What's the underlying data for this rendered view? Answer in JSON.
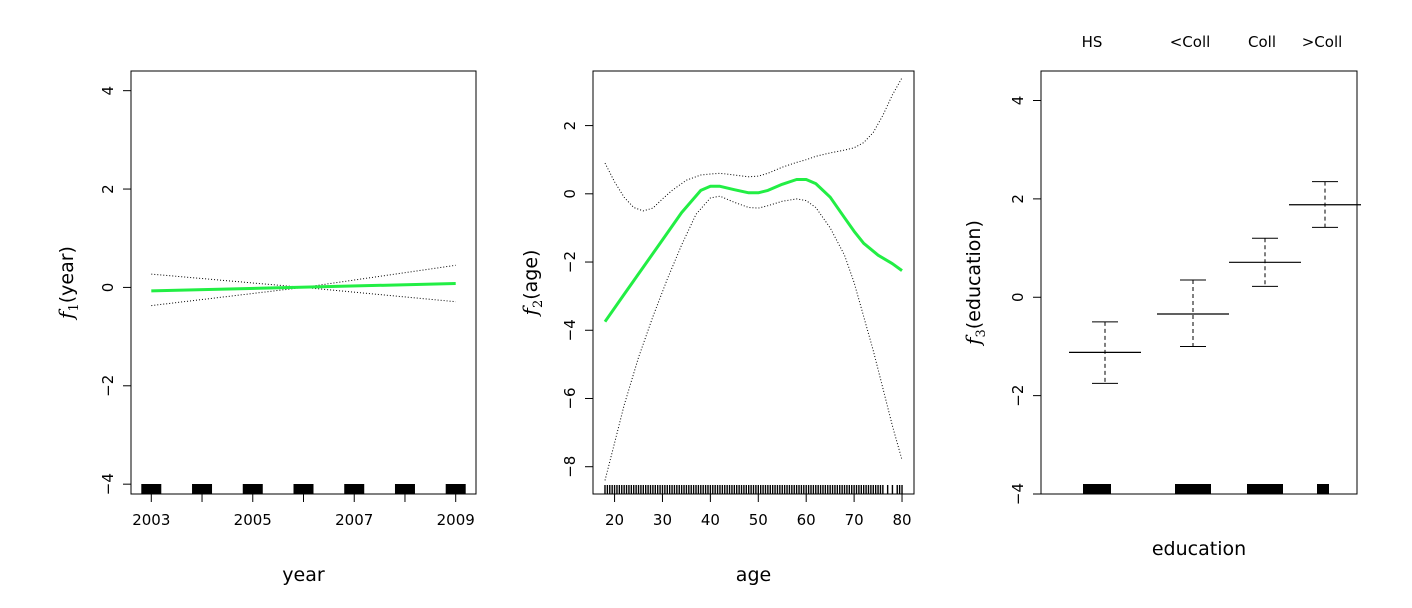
{
  "chart_data": [
    {
      "type": "line",
      "panel": "year",
      "xlabel": "year",
      "ylabel_fn": "f",
      "ylabel_sub": "1",
      "ylabel_var": "year",
      "xlim": [
        2002.6,
        2009.4
      ],
      "ylim": [
        -4.2,
        4.4
      ],
      "x_ticks": [
        2003,
        2005,
        2007,
        2009
      ],
      "x_tick_labels": [
        "2003",
        "2005",
        "2007",
        "2009"
      ],
      "y_ticks": [
        -4,
        -2,
        0,
        2,
        4
      ],
      "y_tick_labels": [
        "−4",
        "−2",
        "0",
        "2",
        "4"
      ],
      "fit_color": "#22ee44",
      "series": [
        {
          "name": "fit",
          "x": [
            2003,
            2009
          ],
          "y": [
            -0.07,
            0.08
          ]
        },
        {
          "name": "upper",
          "x": [
            2003,
            2006,
            2009
          ],
          "y": [
            0.27,
            0.0,
            0.45
          ]
        },
        {
          "name": "lower",
          "x": [
            2003,
            2006,
            2009
          ],
          "y": [
            -0.37,
            0.0,
            -0.29
          ]
        }
      ],
      "rug": [
        2003,
        2004,
        2005,
        2006,
        2007,
        2008,
        2009
      ]
    },
    {
      "type": "line",
      "panel": "age",
      "xlabel": "age",
      "ylabel_fn": "f",
      "ylabel_sub": "2",
      "ylabel_var": "age",
      "xlim": [
        15.5,
        82.5
      ],
      "ylim": [
        -8.8,
        3.6
      ],
      "x_ticks": [
        20,
        30,
        40,
        50,
        60,
        70,
        80
      ],
      "x_tick_labels": [
        "20",
        "30",
        "40",
        "50",
        "60",
        "70",
        "80"
      ],
      "y_ticks": [
        -8,
        -6,
        -4,
        -2,
        0,
        2
      ],
      "y_tick_labels": [
        "−8",
        "−6",
        "−4",
        "−2",
        "0",
        "2"
      ],
      "fit_color": "#22ee44",
      "series": [
        {
          "name": "fit",
          "x": [
            18,
            22,
            26,
            30,
            34,
            38,
            40,
            42,
            45,
            48,
            50,
            52,
            55,
            58,
            60,
            62,
            65,
            68,
            70,
            72,
            75,
            78,
            80
          ],
          "y": [
            -3.75,
            -2.95,
            -2.15,
            -1.35,
            -0.55,
            0.1,
            0.22,
            0.22,
            0.12,
            0.03,
            0.03,
            0.1,
            0.28,
            0.42,
            0.42,
            0.3,
            -0.1,
            -0.7,
            -1.1,
            -1.45,
            -1.8,
            -2.05,
            -2.25
          ]
        },
        {
          "name": "upper",
          "x": [
            18,
            20,
            22,
            24,
            26,
            28,
            30,
            32,
            35,
            38,
            40,
            42,
            45,
            48,
            50,
            52,
            55,
            58,
            60,
            62,
            65,
            68,
            70,
            72,
            74,
            76,
            78,
            80
          ],
          "y": [
            0.9,
            0.35,
            -0.1,
            -0.4,
            -0.5,
            -0.42,
            -0.15,
            0.1,
            0.4,
            0.55,
            0.58,
            0.6,
            0.55,
            0.5,
            0.52,
            0.6,
            0.78,
            0.92,
            1.0,
            1.1,
            1.2,
            1.28,
            1.35,
            1.5,
            1.8,
            2.3,
            2.9,
            3.4
          ]
        },
        {
          "name": "lower",
          "x": [
            18,
            20,
            22,
            25,
            28,
            31,
            34,
            37,
            40,
            42,
            45,
            48,
            50,
            52,
            55,
            58,
            60,
            62,
            65,
            68,
            70,
            72,
            74,
            76,
            78,
            80
          ],
          "y": [
            -8.4,
            -7.3,
            -6.2,
            -4.8,
            -3.6,
            -2.5,
            -1.5,
            -0.6,
            -0.12,
            -0.07,
            -0.25,
            -0.4,
            -0.42,
            -0.35,
            -0.22,
            -0.15,
            -0.2,
            -0.4,
            -1.0,
            -1.8,
            -2.6,
            -3.6,
            -4.6,
            -5.7,
            -6.8,
            -7.8
          ]
        }
      ],
      "rug_note": "dense rug of observed ages 18 to 80"
    },
    {
      "type": "errorbar",
      "panel": "education",
      "xlabel": "education",
      "ylabel_fn": "f",
      "ylabel_sub": "3",
      "ylabel_var": "education",
      "ylim": [
        -4.0,
        4.6
      ],
      "y_ticks": [
        -4,
        -2,
        0,
        2,
        4
      ],
      "y_tick_labels": [
        "−4",
        "−2",
        "0",
        "2",
        "4"
      ],
      "categories": [
        "HS",
        "<Coll",
        "Coll",
        ">Coll"
      ],
      "values": [
        -1.12,
        -0.34,
        0.71,
        1.88
      ],
      "upper": [
        -0.5,
        0.35,
        1.2,
        2.35
      ],
      "lower": [
        -1.75,
        -1.0,
        0.22,
        1.42
      ],
      "rug_weights": [
        3,
        2,
        2,
        1
      ]
    }
  ]
}
